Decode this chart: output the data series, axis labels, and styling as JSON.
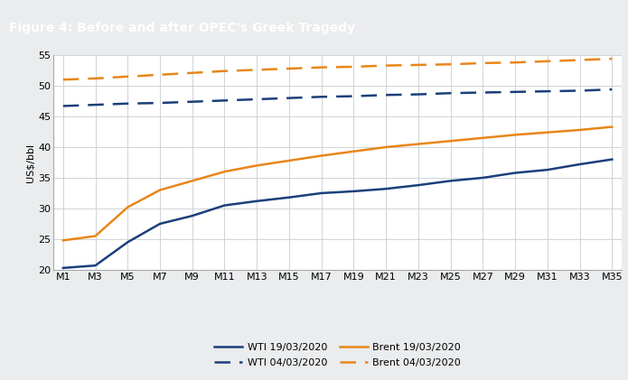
{
  "title": "Figure 4: Before and after OPEC's Greek Tragedy",
  "ylabel": "US$/bbl",
  "ylim": [
    20,
    55
  ],
  "yticks": [
    20,
    25,
    30,
    35,
    40,
    45,
    50,
    55
  ],
  "x_labels": [
    "M1",
    "M3",
    "M5",
    "M7",
    "M9",
    "M11",
    "M13",
    "M15",
    "M17",
    "M19",
    "M21",
    "M23",
    "M25",
    "M27",
    "M29",
    "M31",
    "M33",
    "M35"
  ],
  "wti_after": [
    20.3,
    20.7,
    24.5,
    27.5,
    28.8,
    30.5,
    31.2,
    31.8,
    32.5,
    32.8,
    33.2,
    33.8,
    34.5,
    35.0,
    35.8,
    36.3,
    37.2,
    38.0
  ],
  "wti_before": [
    46.7,
    46.9,
    47.1,
    47.2,
    47.4,
    47.6,
    47.8,
    48.0,
    48.2,
    48.3,
    48.5,
    48.6,
    48.8,
    48.9,
    49.0,
    49.1,
    49.2,
    49.4
  ],
  "brent_after": [
    24.8,
    25.5,
    30.2,
    33.0,
    34.5,
    36.0,
    37.0,
    37.8,
    38.6,
    39.3,
    40.0,
    40.5,
    41.0,
    41.5,
    42.0,
    42.4,
    42.8,
    43.3
  ],
  "brent_before": [
    51.0,
    51.2,
    51.5,
    51.8,
    52.1,
    52.4,
    52.6,
    52.8,
    53.0,
    53.1,
    53.3,
    53.4,
    53.5,
    53.7,
    53.8,
    54.0,
    54.2,
    54.4
  ],
  "color_blue": "#1B3F7A",
  "color_orange": "#E8861A",
  "bg_title": "#8C9BA5",
  "bg_figure": "#EAECEE",
  "bg_plot": "#FFFFFF",
  "grid_color": "#C8CDD0",
  "title_fontsize": 10,
  "axis_fontsize": 8,
  "tick_fontsize": 8,
  "legend_fontsize": 8
}
